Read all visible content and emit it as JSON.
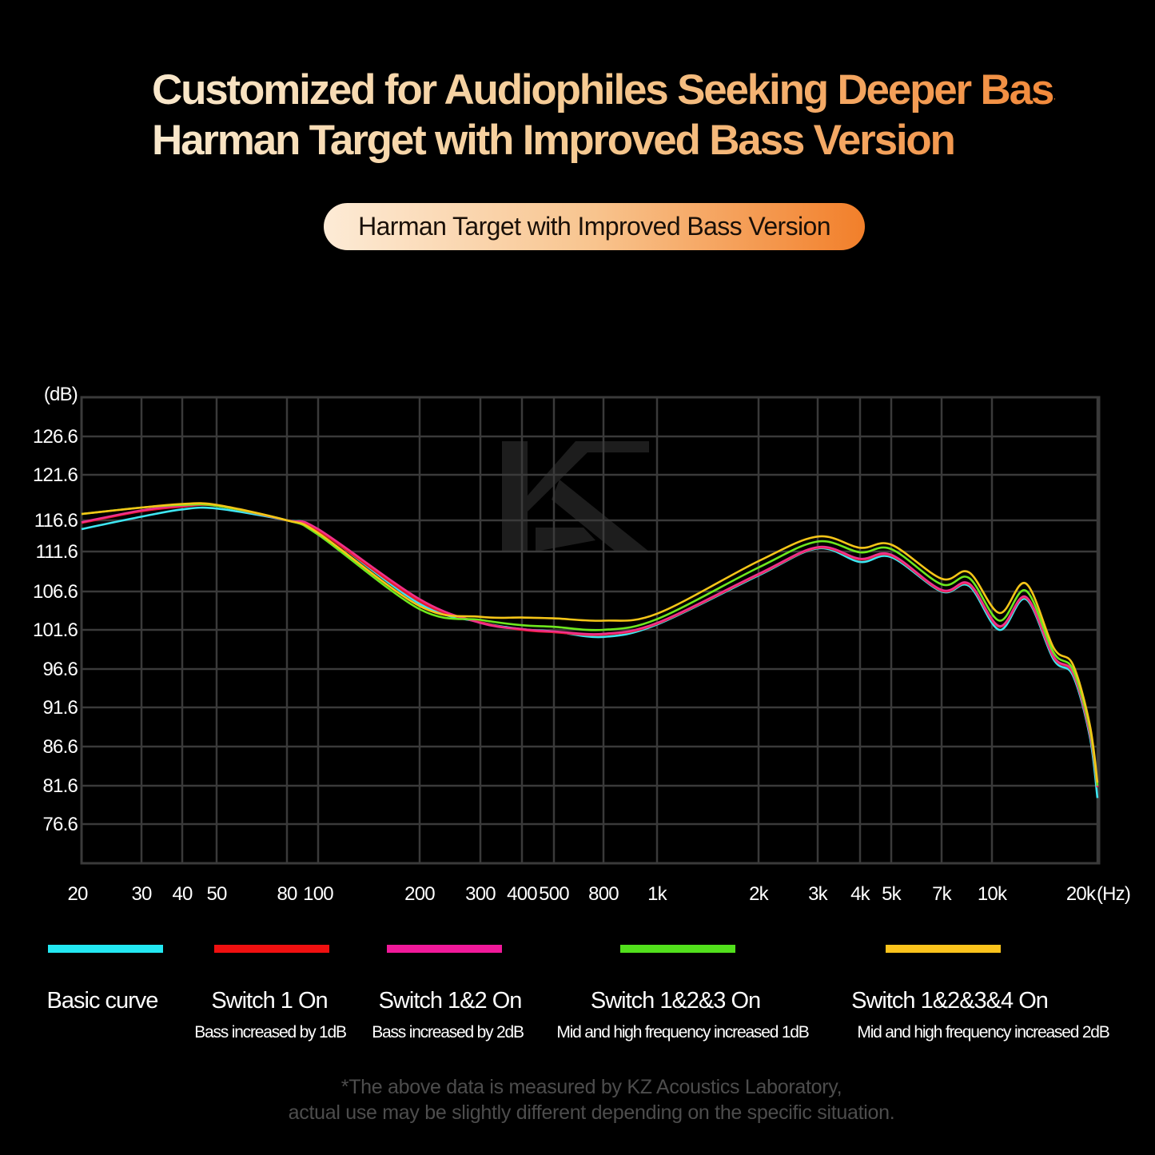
{
  "header": {
    "title_line1": "Customized for Audiophiles Seeking Deeper Bass",
    "title_line2": "Harman Target with Improved Bass Version",
    "pill_label": "Harman Target with Improved Bass Version"
  },
  "chart_data": {
    "type": "line",
    "ylabel": "(dB)",
    "xlabel": "(Hz)",
    "x_scale": "log",
    "grid": true,
    "watermark": "KZ",
    "xlim": [
      20,
      20000
    ],
    "ylim": [
      71.6,
      131.6
    ],
    "x_ticks": [
      {
        "value": 20,
        "label": "20"
      },
      {
        "value": 30,
        "label": "30"
      },
      {
        "value": 40,
        "label": "40"
      },
      {
        "value": 50,
        "label": "50"
      },
      {
        "value": 80,
        "label": "80"
      },
      {
        "value": 100,
        "label": "100"
      },
      {
        "value": 200,
        "label": "200"
      },
      {
        "value": 300,
        "label": "300"
      },
      {
        "value": 400,
        "label": "400"
      },
      {
        "value": 500,
        "label": "500"
      },
      {
        "value": 800,
        "label": "800"
      },
      {
        "value": 1000,
        "label": "1k"
      },
      {
        "value": 2000,
        "label": "2k"
      },
      {
        "value": 3000,
        "label": "3k"
      },
      {
        "value": 4000,
        "label": "4k"
      },
      {
        "value": 5000,
        "label": "5k"
      },
      {
        "value": 7000,
        "label": "7k"
      },
      {
        "value": 10000,
        "label": "10k"
      },
      {
        "value": 20000,
        "label": "20k"
      }
    ],
    "y_ticks": [
      {
        "value": 126.6,
        "label": "126.6"
      },
      {
        "value": 121.6,
        "label": "121.6"
      },
      {
        "value": 116.6,
        "label": "116.6"
      },
      {
        "value": 111.6,
        "label": "111.6"
      },
      {
        "value": 106.6,
        "label": "106.6"
      },
      {
        "value": 101.6,
        "label": "101.6"
      },
      {
        "value": 96.6,
        "label": "96.6"
      },
      {
        "value": 91.6,
        "label": "91.6"
      },
      {
        "value": 86.6,
        "label": "86.6"
      },
      {
        "value": 81.6,
        "label": "81.6"
      },
      {
        "value": 76.6,
        "label": "76.6"
      }
    ],
    "x": [
      20,
      30,
      40,
      50,
      80,
      100,
      200,
      300,
      400,
      500,
      800,
      1000,
      2000,
      3000,
      4000,
      5000,
      7000,
      8500,
      10500,
      12500,
      15000,
      17000,
      19000,
      20000
    ],
    "series": [
      {
        "name": "Basic curve",
        "description": "",
        "color": "#3ee6f2",
        "values": [
          115.2,
          117.0,
          117.8,
          117.9,
          116.6,
          115.1,
          105.0,
          102.6,
          101.7,
          101.4,
          100.7,
          102.3,
          108.6,
          112.1,
          110.3,
          110.9,
          106.6,
          107.3,
          101.6,
          105.6,
          97.8,
          95.8,
          88.0,
          80.0
        ]
      },
      {
        "name": "Switch 1 On",
        "description": "Bass increased by 1dB",
        "color": "#e8192c",
        "values": [
          116.2,
          117.6,
          118.1,
          118.2,
          116.6,
          115.0,
          105.3,
          102.6,
          101.6,
          101.3,
          101.0,
          102.4,
          108.7,
          112.2,
          110.6,
          111.1,
          106.7,
          107.5,
          102.0,
          105.8,
          98.1,
          96.1,
          88.4,
          81.4
        ]
      },
      {
        "name": "Switch 1&2 On",
        "description": "Bass increased by 2dB",
        "color": "#f0308a",
        "values": [
          116.3,
          117.7,
          118.2,
          118.2,
          116.6,
          115.2,
          105.6,
          102.5,
          101.7,
          101.4,
          101.1,
          102.5,
          108.8,
          112.3,
          110.7,
          111.2,
          106.8,
          107.6,
          102.1,
          105.9,
          98.2,
          96.2,
          88.5,
          81.5
        ]
      },
      {
        "name": "Switch 1&2&3 On",
        "description": "Mid and high frequency increased 1dB",
        "color": "#6ee81e",
        "values": [
          117.3,
          118.0,
          118.3,
          118.2,
          116.6,
          114.3,
          104.3,
          102.9,
          102.2,
          102.0,
          101.6,
          103.0,
          109.6,
          113.2,
          111.5,
          112.0,
          107.5,
          108.3,
          102.8,
          106.7,
          98.7,
          96.6,
          89.0,
          81.6
        ]
      },
      {
        "name": "Switch 1&2&3&4 On",
        "description": "Mid and high frequency increased 2dB",
        "color": "#f5c518",
        "values": [
          117.3,
          118.0,
          118.4,
          118.3,
          116.6,
          114.6,
          104.7,
          103.3,
          103.2,
          103.1,
          102.8,
          103.7,
          110.4,
          114.0,
          112.2,
          112.7,
          108.2,
          109.0,
          103.8,
          107.6,
          99.3,
          97.2,
          89.5,
          82.0
        ]
      }
    ],
    "legend_placement": "bottom"
  },
  "legend_colors": [
    "#23e8f2",
    "#f01010",
    "#f0199a",
    "#52e01c",
    "#fbc31c"
  ],
  "footnote": {
    "line1": "*The above data is measured by KZ Acoustics Laboratory,",
    "line2": "actual use may be slightly different depending on the specific situation."
  }
}
